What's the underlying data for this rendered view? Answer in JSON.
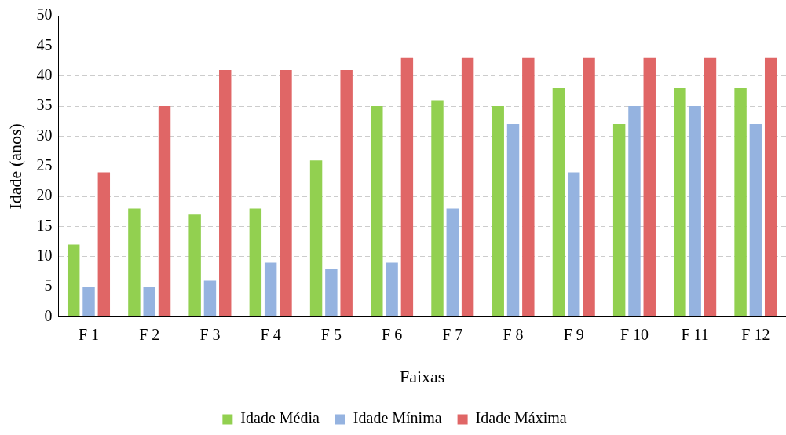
{
  "chart_data": {
    "type": "bar",
    "xlabel": "Faixas",
    "ylabel": "Idade (anos)",
    "categories": [
      "F 1",
      "F 2",
      "F 3",
      "F 4",
      "F 5",
      "F 6",
      "F 7",
      "F 8",
      "F 9",
      "F 10",
      "F 11",
      "F 12"
    ],
    "series": [
      {
        "name": "Idade Média",
        "color": "#92d050",
        "values": [
          12,
          18,
          17,
          18,
          26,
          35,
          36,
          35,
          38,
          32,
          38,
          38
        ]
      },
      {
        "name": "Idade Mínima",
        "color": "#95b3e0",
        "values": [
          5,
          5,
          6,
          9,
          8,
          9,
          18,
          32,
          24,
          35,
          35,
          32
        ]
      },
      {
        "name": "Idade Máxima",
        "color": "#e06666",
        "values": [
          24,
          35,
          41,
          41,
          41,
          43,
          43,
          43,
          43,
          43,
          43,
          43
        ]
      }
    ],
    "ylim": [
      0,
      50
    ],
    "yticks": [
      0,
      5,
      10,
      15,
      20,
      25,
      30,
      35,
      40,
      45,
      50
    ],
    "grid": "y",
    "legend": "bottom"
  }
}
